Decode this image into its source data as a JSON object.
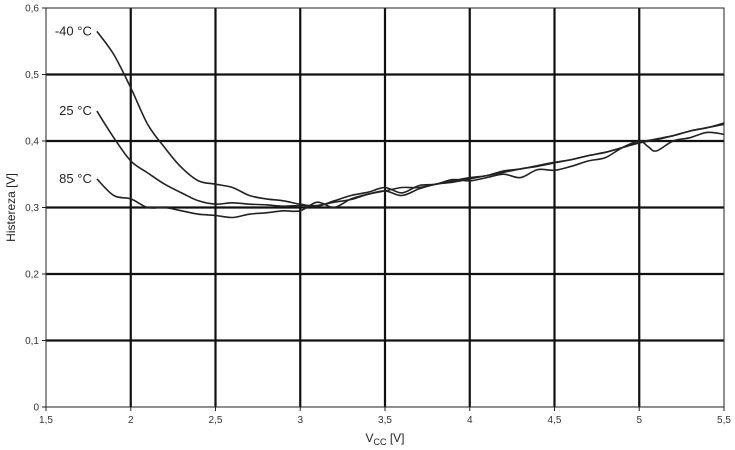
{
  "chart_data": {
    "type": "line",
    "xlabel": "Vcc [V]",
    "xlabel_main": "V",
    "xlabel_sub": "CC",
    "xlabel_unit": " [V]",
    "ylabel": "Histereza [V]",
    "xlim": [
      1.5,
      5.5
    ],
    "ylim": [
      0,
      0.6
    ],
    "grid": true,
    "x_ticks": [
      {
        "v": 1.5,
        "label": "1,5"
      },
      {
        "v": 2,
        "label": "2"
      },
      {
        "v": 2.5,
        "label": "2,5"
      },
      {
        "v": 3,
        "label": "3"
      },
      {
        "v": 3.5,
        "label": "3,5"
      },
      {
        "v": 4,
        "label": "4"
      },
      {
        "v": 4.5,
        "label": "4,5"
      },
      {
        "v": 5,
        "label": "5"
      },
      {
        "v": 5.5,
        "label": "5,5"
      }
    ],
    "y_ticks": [
      {
        "v": 0,
        "label": "0"
      },
      {
        "v": 0.1,
        "label": "0,1"
      },
      {
        "v": 0.2,
        "label": "0,2"
      },
      {
        "v": 0.3,
        "label": "0,3"
      },
      {
        "v": 0.4,
        "label": "0,4"
      },
      {
        "v": 0.5,
        "label": "0,5"
      },
      {
        "v": 0.6,
        "label": "0,6"
      }
    ],
    "series": [
      {
        "name": "-40 °C",
        "color": "#222222",
        "x": [
          1.8,
          1.9,
          2.0,
          2.1,
          2.2,
          2.3,
          2.4,
          2.5,
          2.6,
          2.7,
          2.8,
          2.9,
          3.0,
          3.1,
          3.2,
          3.3,
          3.4,
          3.5,
          3.6,
          3.7,
          3.8,
          3.9,
          4.0,
          4.1,
          4.2,
          4.3,
          4.4,
          4.5,
          4.6,
          4.7,
          4.8,
          4.9,
          5.0,
          5.05,
          5.1,
          5.2,
          5.3,
          5.4,
          5.5
        ],
        "y": [
          0.565,
          0.53,
          0.48,
          0.425,
          0.39,
          0.36,
          0.34,
          0.335,
          0.33,
          0.318,
          0.313,
          0.31,
          0.305,
          0.302,
          0.31,
          0.318,
          0.323,
          0.33,
          0.322,
          0.333,
          0.335,
          0.342,
          0.34,
          0.345,
          0.35,
          0.345,
          0.357,
          0.356,
          0.362,
          0.37,
          0.375,
          0.39,
          0.4,
          0.392,
          0.385,
          0.4,
          0.405,
          0.413,
          0.41
        ]
      },
      {
        "name": "25 °C",
        "color": "#222222",
        "x": [
          1.8,
          1.9,
          2.0,
          2.1,
          2.2,
          2.3,
          2.4,
          2.5,
          2.6,
          2.7,
          2.8,
          2.9,
          3.0,
          3.1,
          3.2,
          3.3,
          3.4,
          3.5,
          3.6,
          3.7,
          3.8,
          3.9,
          4.0,
          4.1,
          4.2,
          4.3,
          4.4,
          4.5,
          4.6,
          4.7,
          4.8,
          4.9,
          5.0,
          5.1,
          5.2,
          5.3,
          5.4,
          5.5
        ],
        "y": [
          0.445,
          0.405,
          0.37,
          0.352,
          0.335,
          0.322,
          0.31,
          0.305,
          0.307,
          0.305,
          0.304,
          0.302,
          0.303,
          0.303,
          0.308,
          0.312,
          0.32,
          0.325,
          0.33,
          0.33,
          0.335,
          0.34,
          0.345,
          0.348,
          0.355,
          0.358,
          0.363,
          0.368,
          0.372,
          0.378,
          0.383,
          0.39,
          0.398,
          0.403,
          0.408,
          0.415,
          0.42,
          0.425
        ]
      },
      {
        "name": "85 °C",
        "color": "#222222",
        "x": [
          1.8,
          1.9,
          2.0,
          2.1,
          2.2,
          2.3,
          2.4,
          2.5,
          2.6,
          2.7,
          2.8,
          2.9,
          3.0,
          3.1,
          3.2,
          3.3,
          3.4,
          3.5,
          3.6,
          3.7,
          3.8,
          3.9,
          4.0,
          4.1,
          4.2,
          4.3,
          4.4,
          4.5,
          4.6,
          4.7,
          4.8,
          4.9,
          5.0,
          5.1,
          5.2,
          5.3,
          5.4,
          5.5
        ],
        "y": [
          0.343,
          0.318,
          0.313,
          0.3,
          0.3,
          0.295,
          0.29,
          0.288,
          0.285,
          0.29,
          0.292,
          0.295,
          0.295,
          0.308,
          0.3,
          0.313,
          0.32,
          0.325,
          0.318,
          0.328,
          0.335,
          0.338,
          0.343,
          0.348,
          0.353,
          0.358,
          0.362,
          0.367,
          0.372,
          0.378,
          0.383,
          0.39,
          0.397,
          0.402,
          0.408,
          0.415,
          0.42,
          0.427
        ]
      }
    ]
  }
}
